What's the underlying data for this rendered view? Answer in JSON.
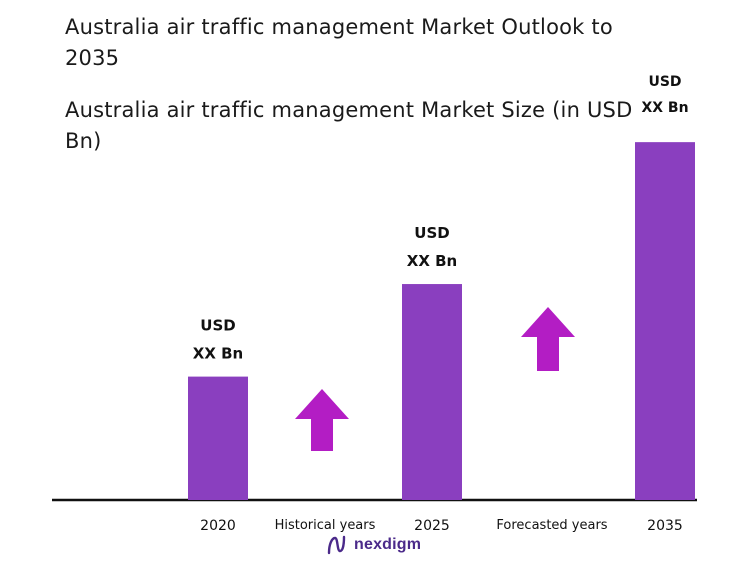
{
  "header": {
    "title": "Australia air traffic management Market Outlook to 2035",
    "subtitle": "Australia air traffic management Market Size (in USD Bn)"
  },
  "brand": {
    "name": "nexdigm"
  },
  "colors": {
    "bar": "#8a3fbf",
    "arrow": "#b31dc4",
    "axis": "#111111",
    "text": "#111111",
    "brand": "#4b2a8a"
  },
  "chart_data": {
    "type": "bar",
    "categories": [
      "2020",
      "2025",
      "2035"
    ],
    "values": [
      1.0,
      1.75,
      2.9
    ],
    "data_labels": [
      [
        "USD",
        "XX Bn"
      ],
      [
        "USD",
        "XX Bn"
      ],
      [
        "USD",
        "XX Bn"
      ]
    ],
    "period_labels": [
      "Historical years",
      "Forecasted years"
    ],
    "ylim": [
      0,
      3.0
    ],
    "grid": false,
    "legend": "none"
  }
}
